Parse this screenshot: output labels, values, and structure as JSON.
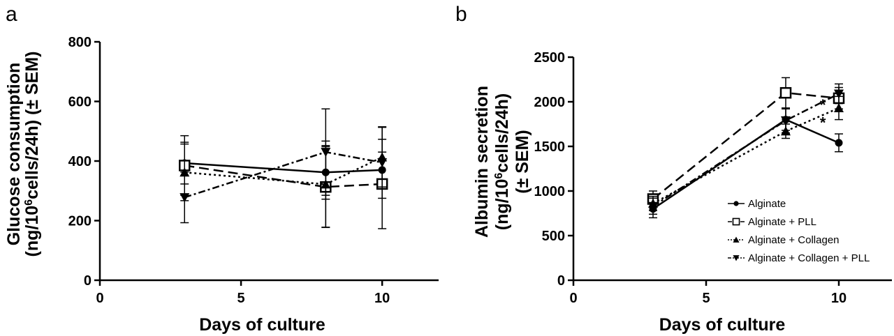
{
  "chart_data": [
    {
      "panel": "a",
      "type": "line",
      "xlabel": "Days of culture",
      "ylabel": [
        "Glucose consumption",
        "(ng/10",
        "6",
        "cells/24h) (± SEM)"
      ],
      "xlim": [
        0,
        12
      ],
      "ylim": [
        0,
        800
      ],
      "xticks": [
        0,
        5,
        10
      ],
      "yticks": [
        0,
        200,
        400,
        600,
        800
      ],
      "x": [
        3,
        8,
        10
      ],
      "grid": false,
      "series": [
        {
          "name": "Alginate",
          "marker": "circle",
          "dash": "solid",
          "values": [
            393,
            362,
            370
          ],
          "err": [
            70,
            90,
            60
          ]
        },
        {
          "name": "Alginate + PLL",
          "marker": "square-open",
          "dash": "long-dash",
          "values": [
            385,
            313,
            323
          ],
          "err": [
            100,
            135,
            150
          ]
        },
        {
          "name": "Alginate + Collagen",
          "marker": "triangle-up",
          "dash": "dotted",
          "values": [
            362,
            322,
            413
          ],
          "err": [
            95,
            145,
            100
          ]
        },
        {
          "name": "Alginate + Collagen + PLL",
          "marker": "triangle-down",
          "dash": "dash-dot",
          "values": [
            278,
            430,
            395
          ],
          "err": [
            85,
            145,
            120
          ]
        }
      ],
      "annotations": []
    },
    {
      "panel": "b",
      "type": "line",
      "xlabel": "Days of culture",
      "ylabel": [
        "Albumin secretion",
        "(ng/10",
        "6",
        "cells/24h)",
        "(± SEM)"
      ],
      "xlim": [
        0,
        12
      ],
      "ylim": [
        0,
        2500
      ],
      "xticks": [
        0,
        5,
        10
      ],
      "yticks": [
        0,
        500,
        1000,
        1500,
        2000,
        2500
      ],
      "x": [
        3,
        8,
        10
      ],
      "grid": false,
      "legend": "lower-right",
      "series": [
        {
          "name": "Alginate",
          "marker": "circle",
          "dash": "solid",
          "values": [
            800,
            1800,
            1540
          ],
          "err": [
            100,
            120,
            100
          ]
        },
        {
          "name": "Alginate + PLL",
          "marker": "square-open",
          "dash": "long-dash",
          "values": [
            910,
            2100,
            2040
          ],
          "err": [
            90,
            170,
            120
          ]
        },
        {
          "name": "Alginate + Collagen",
          "marker": "triangle-up",
          "dash": "dotted",
          "values": [
            860,
            1670,
            1930
          ],
          "err": [
            80,
            80,
            130
          ]
        },
        {
          "name": "Alginate + Collagen + PLL",
          "marker": "triangle-down",
          "dash": "dash-dot",
          "values": [
            830,
            1790,
            2090
          ],
          "err": [
            90,
            140,
            110
          ]
        }
      ],
      "annotations": [
        {
          "text": "*",
          "x": 9.4,
          "y": 2000
        },
        {
          "text": "*",
          "x": 9.4,
          "y": 1800
        }
      ]
    }
  ]
}
